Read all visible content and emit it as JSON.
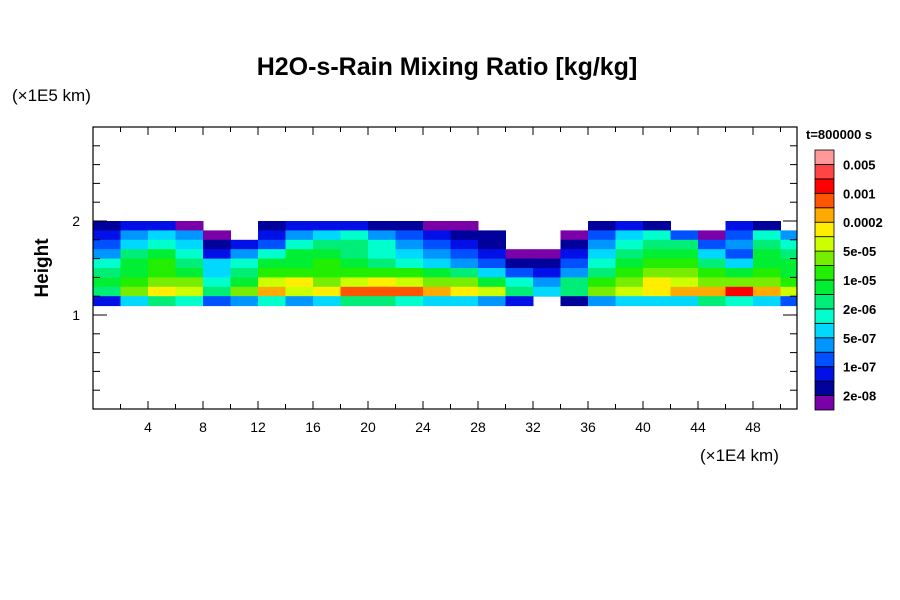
{
  "chart_data": {
    "type": "heatmap",
    "title": "H2O-s-Rain Mixing Ratio [kg/kg]",
    "xlabel": "(×1E4 km)",
    "ylabel": "Height",
    "yunit_label": "(×1E5 km)",
    "time_label": "t=800000 s",
    "xlim": [
      0,
      51.2
    ],
    "ylim": [
      0,
      3
    ],
    "xticks": [
      4,
      8,
      12,
      16,
      20,
      24,
      28,
      32,
      36,
      40,
      44,
      48
    ],
    "yticks": [
      1,
      2
    ],
    "colorbar": {
      "colors": [
        "#7a00a8",
        "#00009a",
        "#0010e6",
        "#0050ff",
        "#0096ff",
        "#00d8ff",
        "#00ffcc",
        "#00ee77",
        "#00ee33",
        "#22ee00",
        "#77ee00",
        "#ccff00",
        "#ffee00",
        "#ffaa00",
        "#ff5500",
        "#ff0000",
        "#ff4444",
        "#ff9999"
      ],
      "labels": [
        "2e-08",
        "1e-07",
        "5e-07",
        "2e-06",
        "1e-05",
        "5e-05",
        "0.0002",
        "0.001",
        "0.005"
      ]
    },
    "grid": {
      "x_start": 0,
      "x_step": 2,
      "y_centers": [
        1.95,
        1.85,
        1.75,
        1.65,
        1.55,
        1.45,
        1.35,
        1.25,
        1.15
      ],
      "y_step": 0.1,
      "level_index": [
        [
          2,
          3,
          3,
          1,
          0,
          0,
          2,
          3,
          3,
          3,
          2,
          2,
          1,
          1,
          0,
          0,
          0,
          0,
          2,
          3,
          2,
          0,
          0,
          3,
          2,
          0
        ],
        [
          3,
          5,
          6,
          5,
          1,
          0,
          3,
          5,
          6,
          7,
          5,
          4,
          3,
          2,
          2,
          0,
          0,
          1,
          4,
          6,
          7,
          4,
          1,
          4,
          7,
          5
        ],
        [
          4,
          6,
          7,
          6,
          2,
          3,
          4,
          7,
          8,
          8,
          7,
          5,
          4,
          3,
          2,
          0,
          0,
          2,
          5,
          7,
          8,
          8,
          4,
          5,
          8,
          7
        ],
        [
          5,
          8,
          9,
          7,
          3,
          5,
          7,
          9,
          9,
          8,
          7,
          6,
          5,
          4,
          3,
          1,
          1,
          3,
          6,
          8,
          9,
          9,
          6,
          4,
          9,
          8
        ],
        [
          7,
          9,
          10,
          8,
          6,
          7,
          9,
          9,
          10,
          9,
          8,
          7,
          6,
          5,
          4,
          2,
          2,
          4,
          7,
          9,
          10,
          10,
          8,
          6,
          9,
          9
        ],
        [
          8,
          9,
          10,
          9,
          6,
          8,
          10,
          10,
          10,
          10,
          10,
          10,
          9,
          8,
          6,
          4,
          3,
          5,
          8,
          10,
          11,
          11,
          10,
          9,
          10,
          9
        ],
        [
          9,
          10,
          11,
          11,
          7,
          9,
          12,
          13,
          11,
          12,
          13,
          12,
          11,
          11,
          9,
          7,
          5,
          8,
          10,
          11,
          13,
          12,
          11,
          11,
          11,
          10
        ],
        [
          8,
          11,
          13,
          12,
          8,
          11,
          14,
          12,
          13,
          15,
          15,
          15,
          14,
          13,
          12,
          8,
          6,
          8,
          11,
          12,
          13,
          14,
          14,
          16,
          14,
          12
        ],
        [
          3,
          6,
          8,
          7,
          4,
          5,
          7,
          5,
          6,
          8,
          8,
          7,
          6,
          6,
          5,
          3,
          0,
          2,
          5,
          6,
          6,
          6,
          8,
          7,
          6,
          4
        ]
      ]
    }
  }
}
